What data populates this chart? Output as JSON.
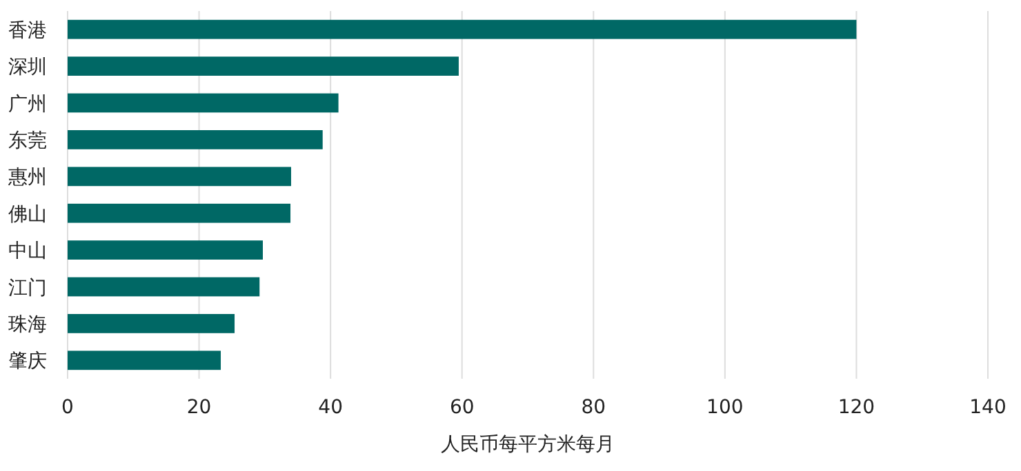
{
  "chart_data": {
    "type": "bar",
    "orientation": "horizontal",
    "categories": [
      "香港",
      "深圳",
      "广州",
      "东莞",
      "惠州",
      "佛山",
      "中山",
      "江门",
      "珠海",
      "肇庆"
    ],
    "values": [
      120,
      59.5,
      41.2,
      38.8,
      34.0,
      33.9,
      29.7,
      29.2,
      25.4,
      23.3
    ],
    "color": "#006865",
    "xlabel": "人民币每平方米每月",
    "xlim": [
      0,
      140
    ],
    "xticks": [
      0,
      20,
      40,
      60,
      80,
      100,
      120,
      140
    ],
    "grid": "x"
  }
}
